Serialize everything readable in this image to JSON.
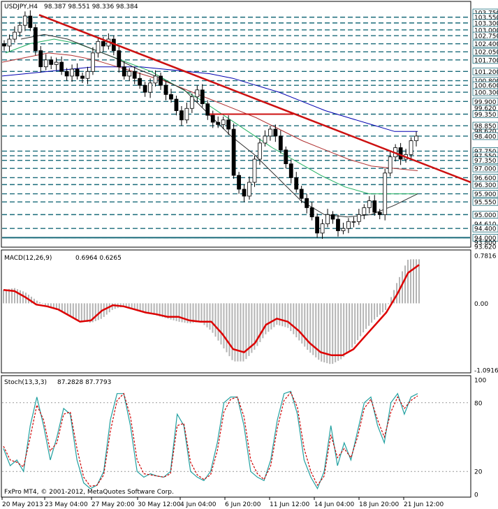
{
  "header": {
    "symbol_title": "USDJPY,H4",
    "ohlc": "98.387 98.551 98.336 98.384",
    "copyright": "FxPro MT4, © 2001-2012, MetaQuotes Software Corp."
  },
  "chart_data": [
    {
      "type": "candlestick",
      "title": "USDJPY,H4",
      "ylim": [
        93.62,
        103.75
      ],
      "price_axis_labels": [
        "103.750",
        "103.550",
        "103.300",
        "103.000",
        "102.750",
        "102.400",
        "102.050",
        "101.700",
        "101.200",
        "100.800",
        "100.600",
        "100.300",
        "99.900",
        "99.620",
        "99.350",
        "98.850",
        "98.620",
        "98.400",
        "97.750",
        "97.550",
        "97.350",
        "97.000",
        "96.600",
        "96.300",
        "95.900",
        "95.550",
        "95.000",
        "94.610",
        "94.400",
        "94.000",
        "93.800",
        "93.620"
      ],
      "horizontal_levels": [
        103.55,
        103.3,
        103.0,
        102.75,
        102.4,
        102.05,
        101.7,
        101.2,
        100.8,
        100.6,
        100.3,
        99.9,
        99.35,
        98.85,
        98.4,
        97.75,
        97.55,
        97.35,
        97.0,
        96.6,
        96.3,
        95.9,
        95.55,
        95.0,
        94.4,
        94.0
      ],
      "x_tick_labels": [
        "20 May 2013",
        "23 May 04:00",
        "27 May 20:00",
        "30 May 12:00",
        "4 Jun 04:00",
        "6 Jun 20:00",
        "11 Jun 12:00",
        "14 Jun 04:00",
        "18 Jun 20:00",
        "21 Jun 12:00"
      ],
      "close_path": [
        102.3,
        102.6,
        102.9,
        103.2,
        103.6,
        103.1,
        102.1,
        101.4,
        101.7,
        101.5,
        101.6,
        101.2,
        101.0,
        101.3,
        101.0,
        100.9,
        101.2,
        102.0,
        102.5,
        102.3,
        102.6,
        102.1,
        101.4,
        101.0,
        101.2,
        100.9,
        100.6,
        100.3,
        100.7,
        101.0,
        100.6,
        100.2,
        100.0,
        99.5,
        99.1,
        99.6,
        100.1,
        100.4,
        99.8,
        99.3,
        99.0,
        98.9,
        99.1,
        98.7,
        96.7,
        96.1,
        95.8,
        96.4,
        97.4,
        98.1,
        98.4,
        98.7,
        98.4,
        97.8,
        97.2,
        96.6,
        96.1,
        95.7,
        95.3,
        94.9,
        94.2,
        94.6,
        95.0,
        94.8,
        94.3,
        94.4,
        94.7,
        94.7,
        95.0,
        95.3,
        95.6,
        95.1,
        95.0,
        96.8,
        97.5,
        97.9,
        97.4,
        97.6,
        98.2,
        98.4
      ],
      "series": [
        {
          "name": "MA-blue",
          "color": "#0000b0",
          "values": [
            101.0,
            101.1,
            101.2,
            101.3,
            101.4,
            101.4,
            101.4,
            101.3,
            101.2,
            101.1,
            100.9,
            100.6,
            100.3,
            99.9,
            99.5,
            99.2,
            98.9,
            98.6,
            98.6
          ]
        },
        {
          "name": "MA-brown",
          "color": "#b03030",
          "values": [
            101.6,
            101.8,
            102.0,
            101.9,
            101.7,
            101.4,
            101.1,
            100.8,
            100.4,
            100.0,
            99.6,
            99.2,
            98.7,
            98.2,
            97.8,
            97.4,
            97.1,
            97.0,
            96.9
          ]
        },
        {
          "name": "MA-green",
          "color": "#20b060",
          "values": [
            102.0,
            102.4,
            102.6,
            102.4,
            102.0,
            101.6,
            101.2,
            100.6,
            100.0,
            99.3,
            98.6,
            97.9,
            97.3,
            96.7,
            96.2,
            95.9,
            95.9,
            95.9
          ]
        },
        {
          "name": "MA-black",
          "color": "#303030",
          "values": [
            102.6,
            102.8,
            102.6,
            102.2,
            101.8,
            101.3,
            100.9,
            100.4,
            99.4,
            98.4,
            97.6,
            96.6,
            95.6,
            95.0,
            94.9,
            95.0,
            95.4,
            95.9
          ]
        }
      ],
      "trendline": {
        "color": "#cc1010",
        "from": [
          "20 May 2013",
          103.65
        ],
        "to": [
          "21 Jun 12:00",
          96.9
        ]
      },
      "resistance_segment": {
        "color": "#cc1010",
        "level": 99.35
      }
    },
    {
      "type": "bar",
      "title": "MACD(12,26,9)",
      "readout": "0.6964 0.6265",
      "axis_labels": [
        "0.7816",
        "0.00",
        "-1.0916"
      ],
      "ylim": [
        -1.0916,
        0.7816
      ],
      "histogram": [
        0.22,
        0.25,
        0.18,
        0.05,
        -0.05,
        -0.12,
        -0.2,
        -0.28,
        -0.32,
        -0.25,
        -0.1,
        -0.05,
        -0.1,
        -0.15,
        -0.2,
        -0.25,
        -0.3,
        -0.33,
        -0.3,
        -0.45,
        -0.7,
        -0.95,
        -0.95,
        -0.75,
        -0.5,
        -0.35,
        -0.4,
        -0.6,
        -0.8,
        -0.95,
        -1.0,
        -0.9,
        -0.7,
        -0.45,
        -0.25,
        -0.1,
        0.35,
        0.72,
        0.72
      ],
      "signal": [
        0.22,
        0.2,
        0.1,
        -0.02,
        -0.05,
        -0.1,
        -0.2,
        -0.3,
        -0.28,
        -0.12,
        -0.03,
        -0.05,
        -0.1,
        -0.15,
        -0.18,
        -0.22,
        -0.22,
        -0.28,
        -0.3,
        -0.3,
        -0.5,
        -0.75,
        -0.8,
        -0.65,
        -0.35,
        -0.25,
        -0.3,
        -0.45,
        -0.65,
        -0.8,
        -0.85,
        -0.85,
        -0.75,
        -0.55,
        -0.35,
        -0.15,
        0.15,
        0.5,
        0.63
      ],
      "signal_color": "#dd0000",
      "histogram_color": "#b4b4b4"
    },
    {
      "type": "line",
      "title": "Stoch(13,3,3)",
      "readout": "87.2828 87.7793",
      "axis_labels": [
        "100",
        "80",
        "20",
        "0"
      ],
      "ylim": [
        0,
        100
      ],
      "series": [
        {
          "name": "main",
          "color": "#20a0a0",
          "values": [
            40,
            25,
            30,
            20,
            60,
            85,
            60,
            30,
            50,
            75,
            70,
            30,
            10,
            5,
            8,
            20,
            65,
            88,
            88,
            60,
            20,
            15,
            18,
            16,
            15,
            20,
            70,
            60,
            20,
            15,
            12,
            20,
            45,
            80,
            85,
            85,
            60,
            20,
            15,
            12,
            30,
            65,
            88,
            90,
            70,
            30,
            15,
            5,
            20,
            60,
            25,
            45,
            30,
            55,
            80,
            85,
            60,
            45,
            80,
            88,
            70,
            85,
            88
          ]
        },
        {
          "name": "signal",
          "color": "#cc0000",
          "values": [
            42,
            30,
            28,
            24,
            50,
            78,
            65,
            38,
            45,
            70,
            72,
            40,
            15,
            7,
            8,
            17,
            55,
            82,
            88,
            68,
            30,
            18,
            17,
            16,
            15,
            18,
            60,
            62,
            28,
            17,
            13,
            17,
            38,
            72,
            83,
            85,
            68,
            30,
            18,
            13,
            25,
            58,
            82,
            89,
            76,
            40,
            20,
            8,
            16,
            52,
            32,
            40,
            32,
            50,
            75,
            83,
            65,
            50,
            72,
            85,
            75,
            82,
            86
          ]
        }
      ]
    }
  ]
}
